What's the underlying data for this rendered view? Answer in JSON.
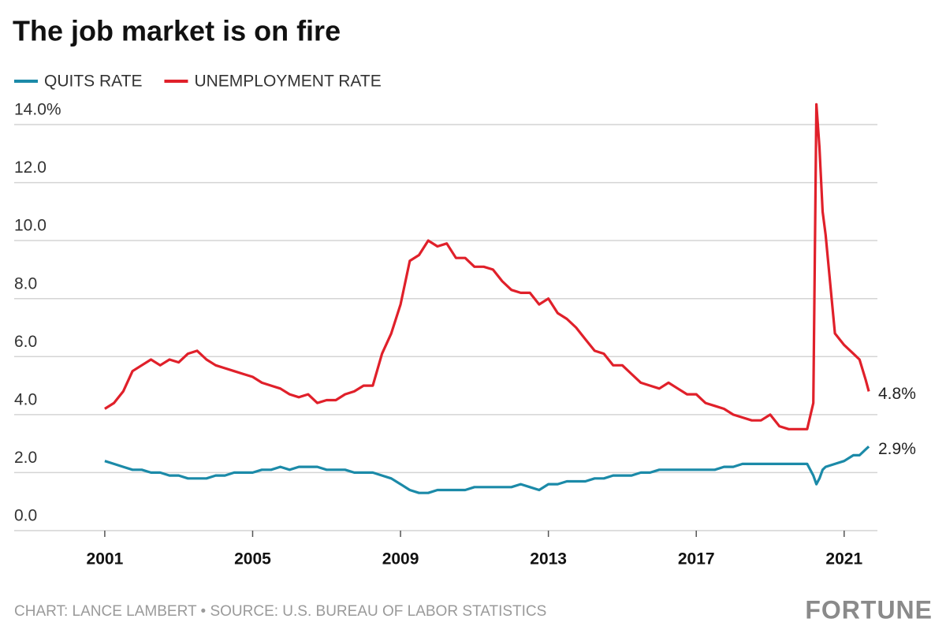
{
  "chart_data": {
    "type": "line",
    "title": "The job market is on fire",
    "source": "CHART: LANCE LAMBERT • SOURCE: U.S. BUREAU OF LABOR STATISTICS",
    "brand": "FORTUNE",
    "grid": true,
    "legend": "top-left",
    "xlim": [
      1998.55,
      2021.9
    ],
    "xticks": [
      2001,
      2005,
      2009,
      2013,
      2017,
      2021
    ],
    "ylim": [
      0,
      14
    ],
    "yticks": [
      {
        "value": 0,
        "label": "0.0"
      },
      {
        "value": 2,
        "label": "2.0"
      },
      {
        "value": 4,
        "label": "4.0"
      },
      {
        "value": 6,
        "label": "6.0"
      },
      {
        "value": 8,
        "label": "8.0"
      },
      {
        "value": 10,
        "label": "10.0"
      },
      {
        "value": 12,
        "label": "12.0"
      },
      {
        "value": 14,
        "label": "14.0%"
      }
    ],
    "x": [
      2001,
      2001.25,
      2001.5,
      2001.75,
      2002,
      2002.25,
      2002.5,
      2002.75,
      2003,
      2003.25,
      2003.5,
      2003.75,
      2004,
      2004.25,
      2004.5,
      2004.75,
      2005,
      2005.25,
      2005.5,
      2005.75,
      2006,
      2006.25,
      2006.5,
      2006.75,
      2007,
      2007.25,
      2007.5,
      2007.75,
      2008,
      2008.25,
      2008.5,
      2008.75,
      2009,
      2009.25,
      2009.5,
      2009.75,
      2010,
      2010.25,
      2010.5,
      2010.75,
      2011,
      2011.25,
      2011.5,
      2011.75,
      2012,
      2012.25,
      2012.5,
      2012.75,
      2013,
      2013.25,
      2013.5,
      2013.75,
      2014,
      2014.25,
      2014.5,
      2014.75,
      2015,
      2015.25,
      2015.5,
      2015.75,
      2016,
      2016.25,
      2016.5,
      2016.75,
      2017,
      2017.25,
      2017.5,
      2017.75,
      2018,
      2018.25,
      2018.5,
      2018.75,
      2019,
      2019.25,
      2019.5,
      2019.75,
      2020,
      2020.167,
      2020.25,
      2020.333,
      2020.417,
      2020.5,
      2020.75,
      2021,
      2021.25,
      2021.417,
      2021.583,
      2021.667
    ],
    "series": [
      {
        "name": "QUITS RATE",
        "color": "#1b8aa8",
        "values": [
          2.4,
          2.3,
          2.2,
          2.1,
          2.1,
          2.0,
          2.0,
          1.9,
          1.9,
          1.8,
          1.8,
          1.8,
          1.9,
          1.9,
          2.0,
          2.0,
          2.0,
          2.1,
          2.1,
          2.2,
          2.1,
          2.2,
          2.2,
          2.2,
          2.1,
          2.1,
          2.1,
          2.0,
          2.0,
          2.0,
          1.9,
          1.8,
          1.6,
          1.4,
          1.3,
          1.3,
          1.4,
          1.4,
          1.4,
          1.4,
          1.5,
          1.5,
          1.5,
          1.5,
          1.5,
          1.6,
          1.5,
          1.4,
          1.6,
          1.6,
          1.7,
          1.7,
          1.7,
          1.8,
          1.8,
          1.9,
          1.9,
          1.9,
          2.0,
          2.0,
          2.1,
          2.1,
          2.1,
          2.1,
          2.1,
          2.1,
          2.1,
          2.2,
          2.2,
          2.3,
          2.3,
          2.3,
          2.3,
          2.3,
          2.3,
          2.3,
          2.3,
          1.9,
          1.6,
          1.8,
          2.1,
          2.2,
          2.3,
          2.4,
          2.6,
          2.6,
          2.8,
          2.9
        ],
        "value_labels": [
          null,
          null,
          null,
          null,
          null,
          null,
          null,
          null,
          null,
          null,
          null,
          null,
          null,
          null,
          null,
          null,
          null,
          null,
          null,
          null,
          null,
          null,
          null,
          null,
          null,
          null,
          null,
          null,
          null,
          null,
          null,
          null,
          null,
          null,
          null,
          null,
          null,
          null,
          null,
          null,
          null,
          null,
          null,
          null,
          null,
          null,
          null,
          null,
          null,
          null,
          null,
          null,
          null,
          null,
          null,
          null,
          null,
          null,
          null,
          null,
          null,
          null,
          null,
          null,
          null,
          null,
          null,
          null,
          null,
          null,
          null,
          null,
          null,
          null,
          null,
          null,
          null,
          null,
          null,
          null,
          null,
          null,
          null,
          null,
          null,
          null,
          null,
          "2.9%"
        ]
      },
      {
        "name": "UNEMPLOYMENT RATE",
        "color": "#e0202a",
        "values": [
          4.2,
          4.4,
          4.8,
          5.5,
          5.7,
          5.9,
          5.7,
          5.9,
          5.8,
          6.1,
          6.2,
          5.9,
          5.7,
          5.6,
          5.5,
          5.4,
          5.3,
          5.1,
          5.0,
          4.9,
          4.7,
          4.6,
          4.7,
          4.4,
          4.5,
          4.5,
          4.7,
          4.8,
          5.0,
          5.0,
          6.1,
          6.8,
          7.8,
          9.3,
          9.5,
          10.0,
          9.8,
          9.9,
          9.4,
          9.4,
          9.1,
          9.1,
          9.0,
          8.6,
          8.3,
          8.2,
          8.2,
          7.8,
          8.0,
          7.5,
          7.3,
          7.0,
          6.6,
          6.2,
          6.1,
          5.7,
          5.7,
          5.4,
          5.1,
          5.0,
          4.9,
          5.1,
          4.9,
          4.7,
          4.7,
          4.4,
          4.3,
          4.2,
          4.0,
          3.9,
          3.8,
          3.8,
          4.0,
          3.6,
          3.5,
          3.5,
          3.5,
          4.4,
          14.7,
          13.2,
          11.0,
          10.2,
          6.8,
          6.4,
          6.1,
          5.9,
          5.2,
          4.8
        ],
        "value_labels": [
          null,
          null,
          null,
          null,
          null,
          null,
          null,
          null,
          null,
          null,
          null,
          null,
          null,
          null,
          null,
          null,
          null,
          null,
          null,
          null,
          null,
          null,
          null,
          null,
          null,
          null,
          null,
          null,
          null,
          null,
          null,
          null,
          null,
          null,
          null,
          null,
          null,
          null,
          null,
          null,
          null,
          null,
          null,
          null,
          null,
          null,
          null,
          null,
          null,
          null,
          null,
          null,
          null,
          null,
          null,
          null,
          null,
          null,
          null,
          null,
          null,
          null,
          null,
          null,
          null,
          null,
          null,
          null,
          null,
          null,
          null,
          null,
          null,
          null,
          null,
          null,
          null,
          null,
          null,
          null,
          null,
          null,
          null,
          null,
          null,
          null,
          null,
          "4.8%"
        ]
      }
    ]
  }
}
